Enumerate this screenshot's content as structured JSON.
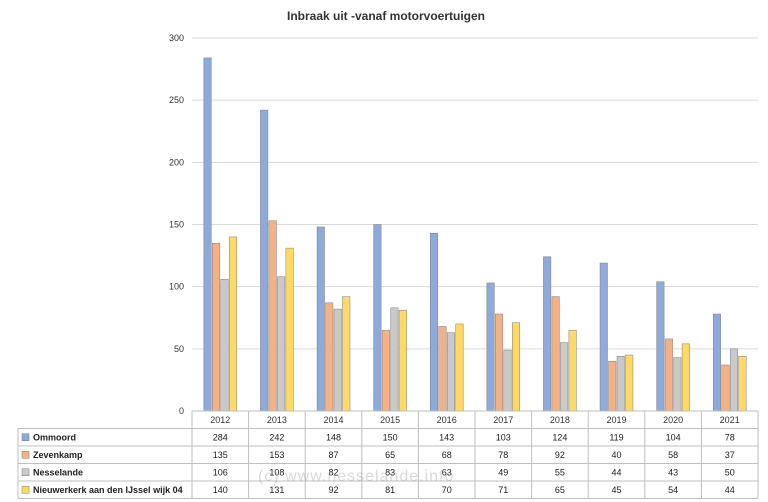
{
  "chart_data": {
    "type": "bar",
    "title": "Inbraak  uit -vanaf motorvoertuigen",
    "categories": [
      "2012",
      "2013",
      "2014",
      "2015",
      "2016",
      "2017",
      "2018",
      "2019",
      "2020",
      "2021"
    ],
    "ylim": [
      0,
      300
    ],
    "yticks": [
      0,
      50,
      100,
      150,
      200,
      250,
      300
    ],
    "grid": true,
    "legend": "data-table",
    "series": [
      {
        "name": "Ommoord",
        "color": "#8eaadb",
        "values": [
          284,
          242,
          148,
          150,
          143,
          103,
          124,
          119,
          104,
          78
        ]
      },
      {
        "name": "Zevenkamp",
        "color": "#f4b183",
        "values": [
          135,
          153,
          87,
          65,
          68,
          78,
          92,
          40,
          58,
          37
        ]
      },
      {
        "name": "Nesselande",
        "color": "#c9c9c9",
        "values": [
          106,
          108,
          82,
          83,
          63,
          49,
          55,
          44,
          43,
          50
        ]
      },
      {
        "name": "Nieuwerkerk aan den IJssel wijk 04",
        "color": "#ffd966",
        "values": [
          140,
          131,
          92,
          81,
          70,
          71,
          65,
          45,
          54,
          44
        ]
      }
    ]
  },
  "watermark": "(c) www.nesselande.info"
}
